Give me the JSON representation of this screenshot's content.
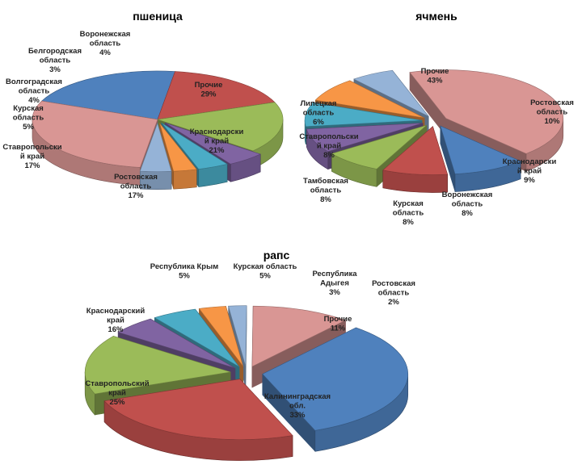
{
  "chart_data": [
    {
      "type": "pie",
      "title": "пшеница",
      "unit": "%",
      "slices": [
        {
          "label": "Прочие",
          "value": 29,
          "color": "#d99694"
        },
        {
          "label": "Краснодарский край",
          "value": 21,
          "color": "#4f81bd"
        },
        {
          "label": "Ростовская область",
          "value": 17,
          "color": "#c0504d"
        },
        {
          "label": "Ставропольский край",
          "value": 17,
          "color": "#9bbb59"
        },
        {
          "label": "Курская область",
          "value": 5,
          "color": "#8064a2"
        },
        {
          "label": "Волгоградская область",
          "value": 4,
          "color": "#4bacc6"
        },
        {
          "label": "Белгородская область",
          "value": 3,
          "color": "#f79646"
        },
        {
          "label": "Воронежская область",
          "value": 4,
          "color": "#95b3d7"
        }
      ]
    },
    {
      "type": "pie",
      "title": "ячмень",
      "unit": "%",
      "slices": [
        {
          "label": "Прочие",
          "value": 43,
          "color": "#d99694"
        },
        {
          "label": "Ростовская область",
          "value": 10,
          "color": "#4f81bd"
        },
        {
          "label": "Краснодарский край",
          "value": 9,
          "color": "#c0504d"
        },
        {
          "label": "Воронежская область",
          "value": 8,
          "color": "#9bbb59"
        },
        {
          "label": "Курская область",
          "value": 8,
          "color": "#8064a2"
        },
        {
          "label": "Тамбовская область",
          "value": 8,
          "color": "#4bacc6"
        },
        {
          "label": "Ставропольский край",
          "value": 8,
          "color": "#f79646"
        },
        {
          "label": "Липецкая область",
          "value": 6,
          "color": "#95b3d7"
        }
      ]
    },
    {
      "type": "pie",
      "title": "рапс",
      "unit": "%",
      "slices": [
        {
          "label": "Калининградская обл.",
          "value": 33,
          "color": "#4f81bd"
        },
        {
          "label": "Ставропольский край",
          "value": 25,
          "color": "#c0504d"
        },
        {
          "label": "Краснодарский край",
          "value": 16,
          "color": "#9bbb59"
        },
        {
          "label": "Республика Крым",
          "value": 5,
          "color": "#8064a2"
        },
        {
          "label": "Курская область",
          "value": 5,
          "color": "#4bacc6"
        },
        {
          "label": "Республика Адыгея",
          "value": 3,
          "color": "#f79646"
        },
        {
          "label": "Ростовская область",
          "value": 2,
          "color": "#95b3d7"
        },
        {
          "label": "Прочие",
          "value": 11,
          "color": "#d99694"
        }
      ]
    }
  ]
}
